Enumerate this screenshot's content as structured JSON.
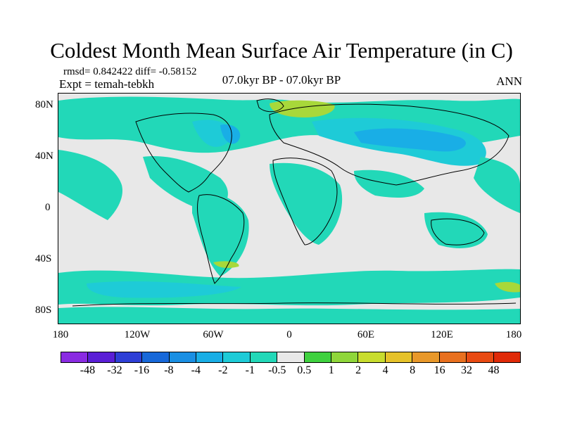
{
  "title": "Coldest Month Mean Surface Air Temperature (in C)",
  "stats": "rmsd= 0.842422 diff= -0.58152",
  "expt": "Expt = temah-tebkh",
  "period": "07.0kyr BP - 07.0kyr BP",
  "season": "ANN",
  "y_ticks": [
    "80N",
    "40N",
    "0",
    "40S",
    "80S"
  ],
  "x_ticks": [
    "180",
    "120W",
    "60W",
    "0",
    "60E",
    "120E",
    "180"
  ],
  "colorbar": {
    "labels": [
      "-48",
      "-32",
      "-16",
      "-8",
      "-4",
      "-2",
      "-1",
      "-0.5",
      "0.5",
      "1",
      "2",
      "4",
      "8",
      "16",
      "32",
      "48"
    ],
    "colors": [
      "#8a2be2",
      "#5a1fd6",
      "#2e3fd6",
      "#1768d9",
      "#1a8fe3",
      "#19aee6",
      "#1ecbd7",
      "#22d8b8",
      "#e8e8e8",
      "#3fd13f",
      "#8fd63a",
      "#c8dc2e",
      "#e6c22a",
      "#e8982a",
      "#e8701f",
      "#e84a12",
      "#e02a08"
    ]
  },
  "colors": {
    "land_coastline": "#000000",
    "neutral": "#e8e8e8",
    "cool_teal": "#22d8b8",
    "cooler_cyan": "#1ecbd7",
    "cold_blue": "#19aee6",
    "warm_yellowgreen": "#a8d83a"
  }
}
